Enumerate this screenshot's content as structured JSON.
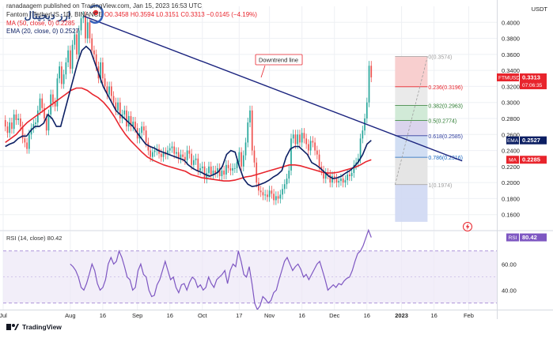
{
  "header": {
    "publisher": "ranadaagem published on TradingView.com, Jan 15, 2023 16:53 UTC",
    "symbol_line": "Fantom / TetherUS, 1D, BINANCE",
    "ohlc": "O0.3458  H0.3594  L0.3151  C0.3313  −0.0145 (−4.19%)",
    "ma_line": "MA (50, close, 0) 0.2285",
    "ema_line": "EMA (20, close, 0) 0.2527"
  },
  "logo": {
    "text": "ارز دیجیتال"
  },
  "footer": {
    "brand": "TradingView"
  },
  "colors": {
    "up": "#26a69a",
    "down": "#ef5350",
    "ema": "#0c1f63",
    "ma": "#e8242c",
    "trendline": "#1a237e",
    "rsi": "#7e57c2",
    "price_tag": "#e8242c"
  },
  "chart_data": [
    {
      "type": "candlestick",
      "title": "FTM/USDT 1D",
      "y_axis_label": "USDT",
      "ylim": [
        0.14,
        0.42
      ],
      "yticks": [
        0.16,
        0.18,
        0.2,
        0.22,
        0.24,
        0.26,
        0.28,
        0.3,
        0.32,
        0.34,
        0.36,
        0.38,
        0.4
      ],
      "ytick_labels": [
        "0.1600",
        "0.1800",
        "0.2000",
        "0.2200",
        "0.2400",
        "0.2600",
        "0.2800",
        "0.3000",
        "0.3200",
        "0.3400",
        "0.3600",
        "0.3800",
        "0.4000"
      ],
      "x_tick_labels": [
        "Jul",
        "Aug",
        "16",
        "Sep",
        "16",
        "Oct",
        "17",
        "Nov",
        "16",
        "Dec",
        "16",
        "2023",
        "16",
        "Feb"
      ],
      "x_tick_index": [
        0,
        31,
        46,
        62,
        77,
        92,
        109,
        123,
        138,
        153,
        168,
        184,
        199,
        215
      ],
      "x_range_index": [
        0,
        228
      ],
      "start_index": 1,
      "close": [
        0.27,
        0.262,
        0.275,
        0.267,
        0.285,
        0.278,
        0.28,
        0.27,
        0.255,
        0.25,
        0.242,
        0.26,
        0.268,
        0.273,
        0.275,
        0.29,
        0.305,
        0.293,
        0.28,
        0.265,
        0.285,
        0.31,
        0.3,
        0.295,
        0.33,
        0.345,
        0.323,
        0.335,
        0.35,
        0.365,
        0.342,
        0.372,
        0.385,
        0.36,
        0.39,
        0.405,
        0.408,
        0.38,
        0.4,
        0.38,
        0.365,
        0.36,
        0.345,
        0.33,
        0.35,
        0.33,
        0.32,
        0.31,
        0.32,
        0.308,
        0.3,
        0.29,
        0.3,
        0.28,
        0.285,
        0.29,
        0.27,
        0.283,
        0.27,
        0.276,
        0.268,
        0.255,
        0.262,
        0.27,
        0.265,
        0.25,
        0.24,
        0.232,
        0.238,
        0.24,
        0.242,
        0.236,
        0.232,
        0.238,
        0.235,
        0.24,
        0.243,
        0.245,
        0.236,
        0.238,
        0.23,
        0.235,
        0.232,
        0.228,
        0.24,
        0.236,
        0.222,
        0.228,
        0.23,
        0.215,
        0.218,
        0.22,
        0.205,
        0.212,
        0.22,
        0.21,
        0.215,
        0.212,
        0.218,
        0.208,
        0.215,
        0.21,
        0.222,
        0.218,
        0.215,
        0.218,
        0.218,
        0.226,
        0.238,
        0.22,
        0.234,
        0.25,
        0.275,
        0.29,
        0.24,
        0.225,
        0.2,
        0.19,
        0.188,
        0.184,
        0.185,
        0.182,
        0.19,
        0.186,
        0.178,
        0.183,
        0.18,
        0.185,
        0.192,
        0.198,
        0.205,
        0.215,
        0.255,
        0.26,
        0.248,
        0.26,
        0.25,
        0.262,
        0.255,
        0.248,
        0.24,
        0.252,
        0.25,
        0.24,
        0.235,
        0.22,
        0.215,
        0.205,
        0.212,
        0.21,
        0.2,
        0.208,
        0.205,
        0.2,
        0.202,
        0.205,
        0.2,
        0.203,
        0.21,
        0.208,
        0.212,
        0.222,
        0.225,
        0.23,
        0.255,
        0.265,
        0.28,
        0.3,
        0.3458,
        0.3313
      ],
      "ema_20": [
        0.245,
        0.248,
        0.25,
        0.255,
        0.258,
        0.258,
        0.265,
        0.27,
        0.27,
        0.274,
        0.285,
        0.28,
        0.27,
        0.27,
        0.29,
        0.31,
        0.33,
        0.35,
        0.365,
        0.37,
        0.365,
        0.35,
        0.335,
        0.32,
        0.31,
        0.3,
        0.29,
        0.285,
        0.28,
        0.275,
        0.27,
        0.262,
        0.255,
        0.248,
        0.245,
        0.243,
        0.24,
        0.238,
        0.236,
        0.234,
        0.232,
        0.23,
        0.228,
        0.222,
        0.218,
        0.215,
        0.213,
        0.21,
        0.208,
        0.21,
        0.213,
        0.22,
        0.235,
        0.24,
        0.238,
        0.22,
        0.205,
        0.198,
        0.195,
        0.196,
        0.198,
        0.2,
        0.203,
        0.207,
        0.21,
        0.215,
        0.232,
        0.242,
        0.245,
        0.245,
        0.24,
        0.235,
        0.225,
        0.222,
        0.218,
        0.213,
        0.208,
        0.205,
        0.206,
        0.208,
        0.212,
        0.215,
        0.22,
        0.226,
        0.235,
        0.248,
        0.2527
      ],
      "ma_50": [
        0.25,
        0.255,
        0.26,
        0.268,
        0.275,
        0.28,
        0.285,
        0.29,
        0.295,
        0.3,
        0.305,
        0.31,
        0.315,
        0.318,
        0.318,
        0.315,
        0.31,
        0.306,
        0.3,
        0.292,
        0.282,
        0.27,
        0.26,
        0.252,
        0.245,
        0.238,
        0.232,
        0.228,
        0.225,
        0.222,
        0.22,
        0.218,
        0.216,
        0.214,
        0.21,
        0.208,
        0.206,
        0.205,
        0.204,
        0.203,
        0.202,
        0.202,
        0.203,
        0.205,
        0.207,
        0.208,
        0.21,
        0.212,
        0.214,
        0.216,
        0.218,
        0.22,
        0.222,
        0.222,
        0.221,
        0.219,
        0.217,
        0.215,
        0.213,
        0.212,
        0.212,
        0.213,
        0.215,
        0.217,
        0.219,
        0.222,
        0.226,
        0.2285
      ],
      "downtrend_line": {
        "label": "Downtrend line",
        "from": {
          "index": 37,
          "price": 0.408
        },
        "to": {
          "index": 212,
          "price": 0.227
        }
      },
      "fibonacci": {
        "from_index": 181,
        "to_index": 196,
        "levels": [
          {
            "ratio": "0",
            "price": 0.3574,
            "label": "0(0.3574)"
          },
          {
            "ratio": "0.236",
            "price": 0.3196,
            "label": "0.236(0.3196)"
          },
          {
            "ratio": "0.382",
            "price": 0.2963,
            "label": "0.382(0.2963)"
          },
          {
            "ratio": "0.5",
            "price": 0.2774,
            "label": "0.5(0.2774)"
          },
          {
            "ratio": "0.618",
            "price": 0.2585,
            "label": "0.618(0.2585)"
          },
          {
            "ratio": "0.786",
            "price": 0.2316,
            "label": "0.786(0.2316)"
          },
          {
            "ratio": "1",
            "price": 0.1974,
            "label": "1(0.1974)"
          }
        ]
      },
      "price_tags": [
        {
          "label": "FTMUSDT",
          "value": "0.3313",
          "extra": "07:06:35",
          "price": 0.3313
        },
        {
          "label": "EMA",
          "value": "0.2527",
          "price": 0.2527
        },
        {
          "label": "MA",
          "value": "0.2285",
          "price": 0.2285
        }
      ]
    },
    {
      "type": "line",
      "title": "RSI (14, close) 80.42",
      "ylim": [
        25,
        85
      ],
      "yticks": [
        40,
        60
      ],
      "ytick_labels": [
        "40.00",
        "60.00"
      ],
      "bands": [
        30,
        70
      ],
      "current": {
        "label": "RSI",
        "value": "80.42"
      },
      "start_index": 31,
      "values": [
        60,
        58,
        55,
        50,
        42,
        40,
        45,
        52,
        60,
        55,
        45,
        40,
        42,
        48,
        60,
        65,
        60,
        62,
        70,
        65,
        58,
        50,
        48,
        40,
        42,
        55,
        60,
        52,
        50,
        40,
        35,
        36,
        44,
        48,
        55,
        62,
        55,
        48,
        50,
        42,
        38,
        44,
        45,
        40,
        46,
        50,
        48,
        42,
        44,
        40,
        42,
        50,
        45,
        42,
        48,
        50,
        52,
        55,
        45,
        55,
        60,
        58,
        70,
        62,
        52,
        50,
        58,
        45,
        30,
        25,
        28,
        35,
        33,
        30,
        32,
        38,
        40,
        48,
        55,
        62,
        65,
        60,
        55,
        58,
        60,
        56,
        50,
        52,
        48,
        52,
        56,
        60,
        62,
        55,
        48,
        40,
        42,
        44,
        42,
        45,
        44,
        47,
        49,
        50,
        55,
        62,
        68,
        70,
        74,
        80,
        86,
        80.42
      ]
    }
  ]
}
